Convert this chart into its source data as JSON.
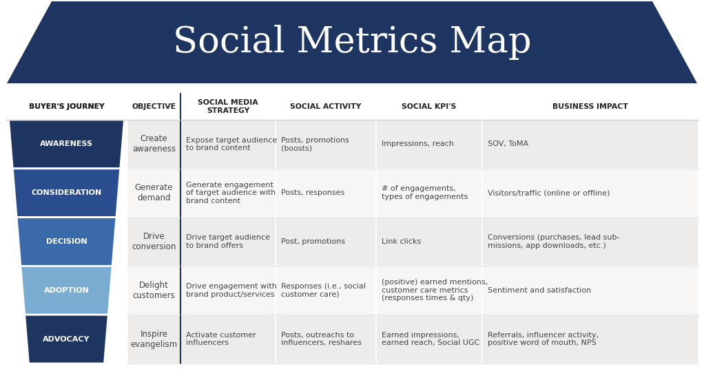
{
  "title_full": "Social Metrics Map",
  "bg_color": "#ffffff",
  "header_bg": "#1e3461",
  "header_text_color": "#ffffff",
  "funnel_colors": [
    "#1e3461",
    "#2a4d8f",
    "#3a6aaa",
    "#7aabd0",
    "#1e3461"
  ],
  "journey_labels": [
    "AWARENESS",
    "CONSIDERATION",
    "DECISION",
    "ADOPTION",
    "ADVOCACY"
  ],
  "objectives": [
    "Create\nawareness",
    "Generate\ndemand",
    "Drive\nconversion",
    "Delight\ncustomers",
    "Inspire\nevangelism"
  ],
  "strategies": [
    "Expose target audience\nto brand content",
    "Generate engagement\nof target audience with\nbrand content",
    "Drive target audience\nto brand offers",
    "Drive engagement with\nbrand product/services",
    "Activate customer\ninfluencers"
  ],
  "activities": [
    "Posts, promotions\n(boosts)",
    "Posts, responses",
    "Post, promotions",
    "Responses (i.e., social\ncustomer care)",
    "Posts, outreachs to\ninfluencers, reshares"
  ],
  "kpis": [
    "Impressions, reach",
    "# of engagements,\ntypes of engagements",
    "Link clicks",
    "(positive) earned mentions,\ncustomer care metrics\n(responses times & qty)",
    "Earned impressions,\nearned reach, Social UGC"
  ],
  "impacts": [
    "SOV, ToMA",
    "Visitors/traffic (online or offline)",
    "Conversions (purchases, lead sub-\nmissions, app downloads, etc.)",
    "Sentiment and satisfaction",
    "Referrals, influencer activity,\npositive word of mouth, NPS"
  ],
  "col_headers": [
    "BUYER'S JOURNEY",
    "OBJECTIVE",
    "SOCIAL MEDIA\nSTRATEGY",
    "SOCIAL ACTIVITY",
    "SOCIAL KPI'S",
    "BUSINESS IMPACT"
  ],
  "row_bg_odd": "#eeecea",
  "row_bg_even": "#f7f6f4",
  "separator_color": "#1e3461",
  "text_color": "#444444",
  "header_col_color": "#222222"
}
